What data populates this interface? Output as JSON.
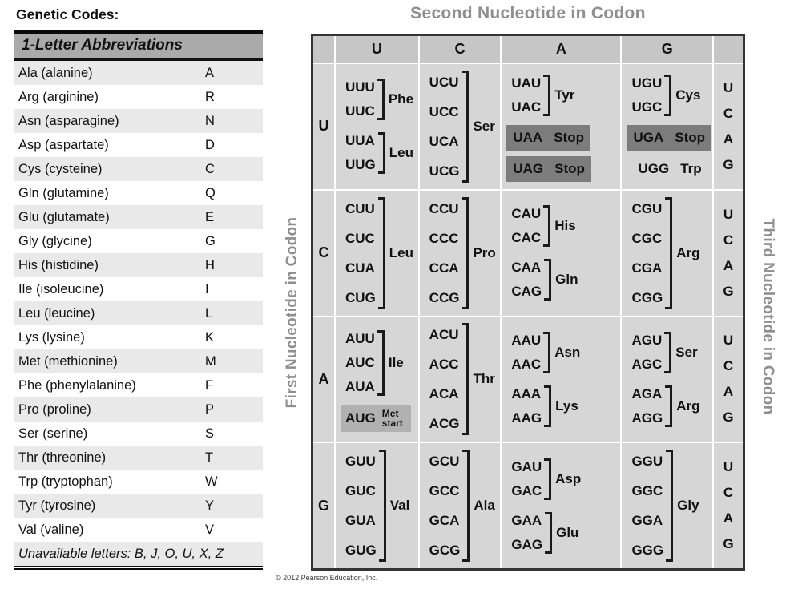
{
  "page": {
    "heading": "Genetic Codes:",
    "copyright": "© 2012 Pearson Education, Inc."
  },
  "colors": {
    "stop_highlight": "#7c7c7c",
    "start_highlight": "#b1b1b1",
    "axis_gray": "#8e8e8e",
    "cell_gray": "#d6d6d6",
    "header_gray": "#c6c6c6",
    "abbrev_header_gray": "#aaaaaa",
    "row_alt_gray": "#e9e9e9"
  },
  "left_panel": {
    "header": "1-Letter Abbreviations",
    "amino_acids": [
      {
        "name": "Ala (alanine)",
        "letter": "A"
      },
      {
        "name": "Arg (arginine)",
        "letter": "R"
      },
      {
        "name": "Asn (asparagine)",
        "letter": "N"
      },
      {
        "name": "Asp (aspartate)",
        "letter": "D"
      },
      {
        "name": "Cys (cysteine)",
        "letter": "C"
      },
      {
        "name": "Gln (glutamine)",
        "letter": "Q"
      },
      {
        "name": "Glu (glutamate)",
        "letter": "E"
      },
      {
        "name": "Gly (glycine)",
        "letter": "G"
      },
      {
        "name": "His (histidine)",
        "letter": "H"
      },
      {
        "name": "Ile (isoleucine)",
        "letter": "I"
      },
      {
        "name": "Leu (leucine)",
        "letter": "L"
      },
      {
        "name": "Lys (lysine)",
        "letter": "K"
      },
      {
        "name": "Met (methionine)",
        "letter": "M"
      },
      {
        "name": "Phe (phenylalanine)",
        "letter": "F"
      },
      {
        "name": "Pro (proline)",
        "letter": "P"
      },
      {
        "name": "Ser (serine)",
        "letter": "S"
      },
      {
        "name": "Thr (threonine)",
        "letter": "T"
      },
      {
        "name": "Trp (tryptophan)",
        "letter": "W"
      },
      {
        "name": "Tyr (tyrosine)",
        "letter": "Y"
      },
      {
        "name": "Val (valine)",
        "letter": "V"
      }
    ],
    "note": "Unavailable letters: B, J, O, U, X, Z"
  },
  "codon_table": {
    "title": "Second Nucleotide in Codon",
    "left_axis_label": "First Nucleotide in Codon",
    "right_axis_label": "Third Nucleotide in Codon",
    "second_nucleotides": [
      "U",
      "C",
      "A",
      "G"
    ],
    "third_nucleotides": [
      "U",
      "C",
      "A",
      "G"
    ],
    "rows": [
      {
        "first": "U",
        "cells": [
          {
            "groups": [
              {
                "codons": [
                  "UUU",
                  "UUC"
                ],
                "label": "Phe",
                "bracket": true
              },
              {
                "codons": [
                  "UUA",
                  "UUG"
                ],
                "label": "Leu",
                "bracket": true
              }
            ]
          },
          {
            "groups": [
              {
                "codons": [
                  "UCU",
                  "UCC",
                  "UCA",
                  "UCG"
                ],
                "label": "Ser",
                "bracket": true
              }
            ]
          },
          {
            "groups": [
              {
                "codons": [
                  "UAU",
                  "UAC"
                ],
                "label": "Tyr",
                "bracket": true
              },
              {
                "codons": [
                  "UAA"
                ],
                "label": "Stop",
                "highlight": "stop"
              },
              {
                "codons": [
                  "UAG"
                ],
                "label": "Stop",
                "highlight": "stop"
              }
            ]
          },
          {
            "groups": [
              {
                "codons": [
                  "UGU",
                  "UGC"
                ],
                "label": "Cys",
                "bracket": true
              },
              {
                "codons": [
                  "UGA"
                ],
                "label": "Stop",
                "highlight": "stop"
              },
              {
                "codons": [
                  "UGG"
                ],
                "label": "Trp"
              }
            ]
          }
        ]
      },
      {
        "first": "C",
        "cells": [
          {
            "groups": [
              {
                "codons": [
                  "CUU",
                  "CUC",
                  "CUA",
                  "CUG"
                ],
                "label": "Leu",
                "bracket": true
              }
            ]
          },
          {
            "groups": [
              {
                "codons": [
                  "CCU",
                  "CCC",
                  "CCA",
                  "CCG"
                ],
                "label": "Pro",
                "bracket": true
              }
            ]
          },
          {
            "groups": [
              {
                "codons": [
                  "CAU",
                  "CAC"
                ],
                "label": "His",
                "bracket": true
              },
              {
                "codons": [
                  "CAA",
                  "CAG"
                ],
                "label": "Gln",
                "bracket": true
              }
            ]
          },
          {
            "groups": [
              {
                "codons": [
                  "CGU",
                  "CGC",
                  "CGA",
                  "CGG"
                ],
                "label": "Arg",
                "bracket": true
              }
            ]
          }
        ]
      },
      {
        "first": "A",
        "cells": [
          {
            "groups": [
              {
                "codons": [
                  "AUU",
                  "AUC",
                  "AUA"
                ],
                "label": "Ile",
                "bracket": true
              },
              {
                "codons": [
                  "AUG"
                ],
                "label": "Met",
                "label2": "start",
                "highlight": "start"
              }
            ]
          },
          {
            "groups": [
              {
                "codons": [
                  "ACU",
                  "ACC",
                  "ACA",
                  "ACG"
                ],
                "label": "Thr",
                "bracket": true
              }
            ]
          },
          {
            "groups": [
              {
                "codons": [
                  "AAU",
                  "AAC"
                ],
                "label": "Asn",
                "bracket": true
              },
              {
                "codons": [
                  "AAA",
                  "AAG"
                ],
                "label": "Lys",
                "bracket": true
              }
            ]
          },
          {
            "groups": [
              {
                "codons": [
                  "AGU",
                  "AGC"
                ],
                "label": "Ser",
                "bracket": true
              },
              {
                "codons": [
                  "AGA",
                  "AGG"
                ],
                "label": "Arg",
                "bracket": true
              }
            ]
          }
        ]
      },
      {
        "first": "G",
        "cells": [
          {
            "groups": [
              {
                "codons": [
                  "GUU",
                  "GUC",
                  "GUA",
                  "GUG"
                ],
                "label": "Val",
                "bracket": true
              }
            ]
          },
          {
            "groups": [
              {
                "codons": [
                  "GCU",
                  "GCC",
                  "GCA",
                  "GCG"
                ],
                "label": "Ala",
                "bracket": true
              }
            ]
          },
          {
            "groups": [
              {
                "codons": [
                  "GAU",
                  "GAC"
                ],
                "label": "Asp",
                "bracket": true
              },
              {
                "codons": [
                  "GAA",
                  "GAG"
                ],
                "label": "Glu",
                "bracket": true
              }
            ]
          },
          {
            "groups": [
              {
                "codons": [
                  "GGU",
                  "GGC",
                  "GGA",
                  "GGG"
                ],
                "label": "Gly",
                "bracket": true
              }
            ]
          }
        ]
      }
    ]
  }
}
